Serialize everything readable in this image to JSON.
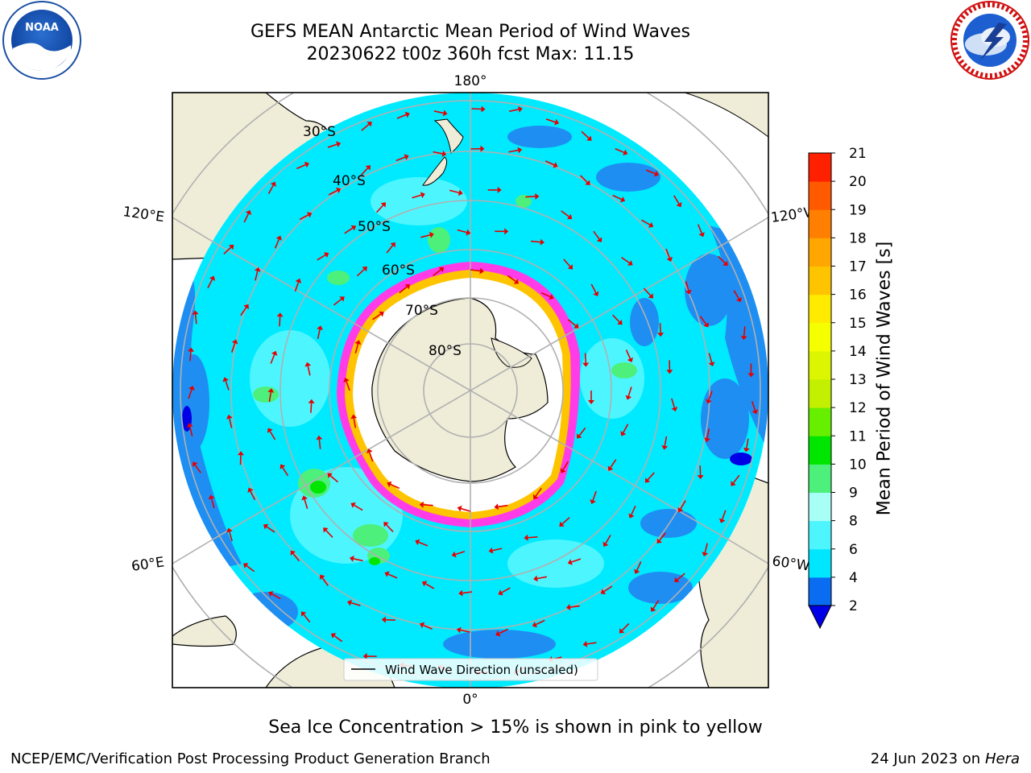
{
  "title": {
    "line1": "GEFS MEAN Antarctic Mean Period of Wind Waves",
    "line2": "20230622 t00z 360h fcst   Max: 11.15"
  },
  "logos": {
    "left": {
      "text": "NOAA",
      "ring_text": "NATIONAL OCEANIC AND ATMOSPHERIC ADMINISTRATION · U.S. DEPARTMENT OF COMMERCE"
    },
    "right": {
      "ring_text": "NATIONAL WEATHER SERVICE"
    }
  },
  "map": {
    "longitude_labels": {
      "top": "180°",
      "bottom": "0°",
      "left_upper": "120°E",
      "left_lower": "60°E",
      "right_upper": "120°W",
      "right_lower": "60°W"
    },
    "latitude_labels": [
      "30°S",
      "40°S",
      "50°S",
      "60°S",
      "70°S",
      "80°S"
    ],
    "legend": "Wind Wave Direction (unscaled)"
  },
  "colorbar": {
    "label": "Mean Period of Wind Waves [s]",
    "ticks": [
      "2",
      "4",
      "6",
      "8",
      "9",
      "10",
      "11",
      "12",
      "13",
      "14",
      "15",
      "16",
      "17",
      "18",
      "19",
      "20",
      "21"
    ],
    "colors": [
      "#0a6cf0",
      "#00e6ff",
      "#4df5ff",
      "#a8fff5",
      "#4df07a",
      "#00e600",
      "#66f000",
      "#c2f000",
      "#dcf500",
      "#f5ff00",
      "#ffeb00",
      "#ffc400",
      "#ffa600",
      "#ff8000",
      "#ff5a00",
      "#ff2000"
    ],
    "under_color": "#0000e6",
    "over_color": "#ff0000"
  },
  "colors": {
    "ocean_dark": "#1f8ef2",
    "ocean": "#00eaff",
    "land": "#efedd8",
    "sea_ice": "#ff3ce8",
    "arrow": "#e60000"
  },
  "note": "Sea Ice Concentration > 15% is shown in pink to yellow",
  "footer": {
    "left": "NCEP/EMC/Verification Post Processing Product Generation Branch",
    "right_prefix": "24 Jun 2023 on",
    "right_host": "Hera"
  }
}
